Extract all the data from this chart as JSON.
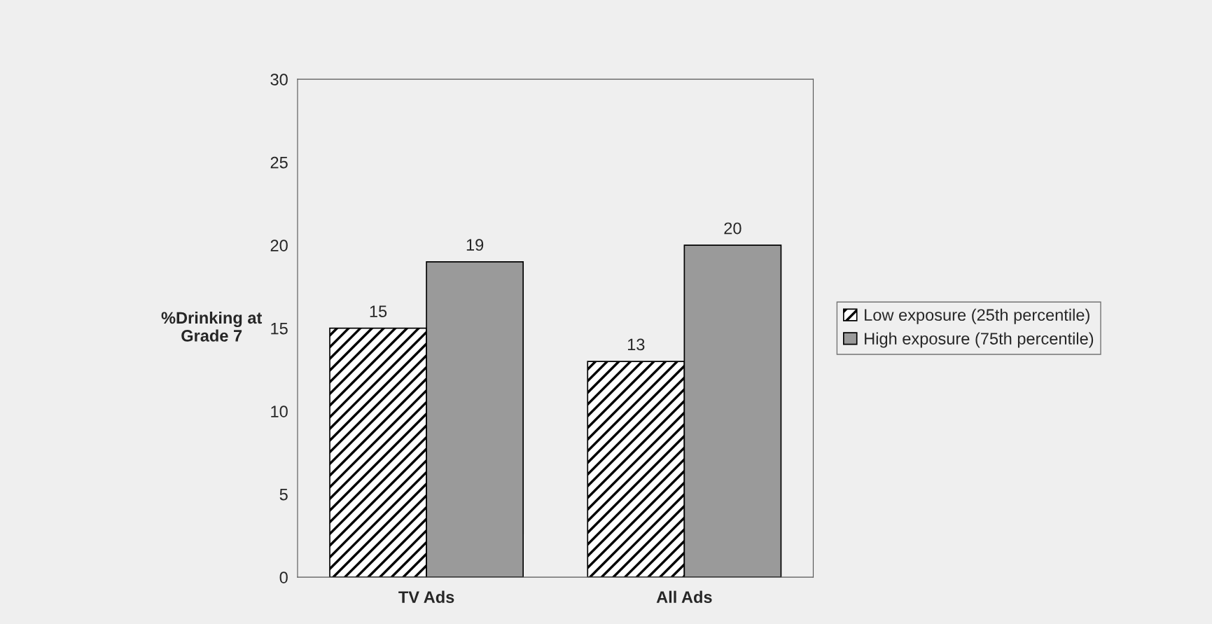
{
  "chart_data": {
    "type": "bar",
    "ylabel": "%Drinking at\nGrade 7",
    "categories": [
      "TV Ads",
      "All Ads"
    ],
    "series": [
      {
        "name": "Low exposure (25th percentile)",
        "color": "#000000",
        "values": [
          15,
          13
        ]
      },
      {
        "name": "High exposure (75th percentile)",
        "color": "#9a9a9a",
        "values": [
          19,
          20
        ]
      }
    ],
    "ylim": [
      0,
      30
    ],
    "yticks": [
      0,
      5,
      10,
      15,
      20,
      25,
      30
    ],
    "data_labels": true,
    "grid": false,
    "legend": "right"
  }
}
